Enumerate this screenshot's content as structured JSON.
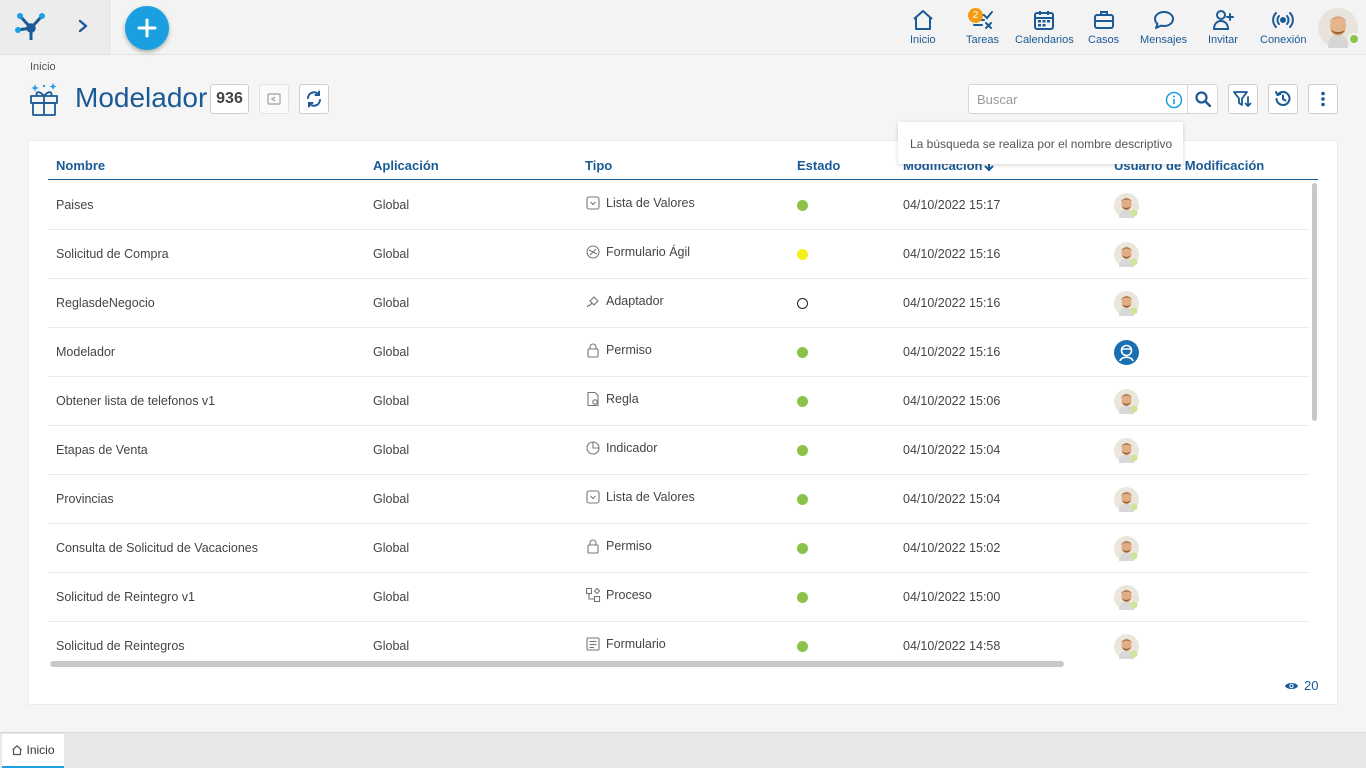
{
  "topbar": {
    "nav": [
      {
        "label": "Inicio",
        "icon": "home-icon"
      },
      {
        "label": "Tareas",
        "icon": "tasks-icon",
        "badge": "2"
      },
      {
        "label": "Calendarios",
        "icon": "calendar-icon"
      },
      {
        "label": "Casos",
        "icon": "briefcase-icon"
      },
      {
        "label": "Mensajes",
        "icon": "message-icon"
      },
      {
        "label": "Invitar",
        "icon": "invite-icon"
      },
      {
        "label": "Conexión",
        "icon": "connection-icon"
      }
    ]
  },
  "breadcrumb": "Inicio",
  "page": {
    "title": "Modelador",
    "count": "936"
  },
  "search": {
    "placeholder": "Buscar",
    "tooltip": "La búsqueda se realiza por el nombre descriptivo"
  },
  "table": {
    "columns": [
      "Nombre",
      "Aplicación",
      "Tipo",
      "Estado",
      "Modificación",
      "Usuario de Modificación"
    ],
    "rows": [
      {
        "name": "Paises",
        "app": "Global",
        "type": "Lista de Valores",
        "type_icon": "list-icon",
        "status": "green",
        "modified": "04/10/2022 15:17",
        "user": "photo"
      },
      {
        "name": "Solicitud de Compra",
        "app": "Global",
        "type": "Formulario Ágil",
        "type_icon": "agile-form-icon",
        "status": "yellow",
        "modified": "04/10/2022 15:16",
        "user": "photo"
      },
      {
        "name": "ReglasdeNegocio",
        "app": "Global",
        "type": "Adaptador",
        "type_icon": "adapter-icon",
        "status": "empty",
        "modified": "04/10/2022 15:16",
        "user": "photo"
      },
      {
        "name": "Modelador",
        "app": "Global",
        "type": "Permiso",
        "type_icon": "lock-icon",
        "status": "green",
        "modified": "04/10/2022 15:16",
        "user": "system"
      },
      {
        "name": "Obtener lista de telefonos v1",
        "app": "Global",
        "type": "Regla",
        "type_icon": "rule-icon",
        "status": "green",
        "modified": "04/10/2022 15:06",
        "user": "photo"
      },
      {
        "name": "Etapas de Venta",
        "app": "Global",
        "type": "Indicador",
        "type_icon": "indicator-icon",
        "status": "green",
        "modified": "04/10/2022 15:04",
        "user": "photo"
      },
      {
        "name": "Provincias",
        "app": "Global",
        "type": "Lista de Valores",
        "type_icon": "list-icon",
        "status": "green",
        "modified": "04/10/2022 15:04",
        "user": "photo"
      },
      {
        "name": "Consulta de Solicitud de Vacaciones",
        "app": "Global",
        "type": "Permiso",
        "type_icon": "lock-icon",
        "status": "green",
        "modified": "04/10/2022 15:02",
        "user": "photo"
      },
      {
        "name": "Solicitud de Reintegro v1",
        "app": "Global",
        "type": "Proceso",
        "type_icon": "process-icon",
        "status": "green",
        "modified": "04/10/2022 15:00",
        "user": "photo"
      },
      {
        "name": "Solicitud de Reintegros",
        "app": "Global",
        "type": "Formulario",
        "type_icon": "form-icon",
        "status": "green",
        "modified": "04/10/2022 14:58",
        "user": "photo"
      }
    ]
  },
  "page_size": "20",
  "bottom_tab": "Inicio",
  "colors": {
    "primary": "#1a5a96",
    "accent": "#1aa0e0",
    "status_green": "#8bc34a",
    "status_yellow": "#f5f01a",
    "badge": "#f39c12"
  }
}
